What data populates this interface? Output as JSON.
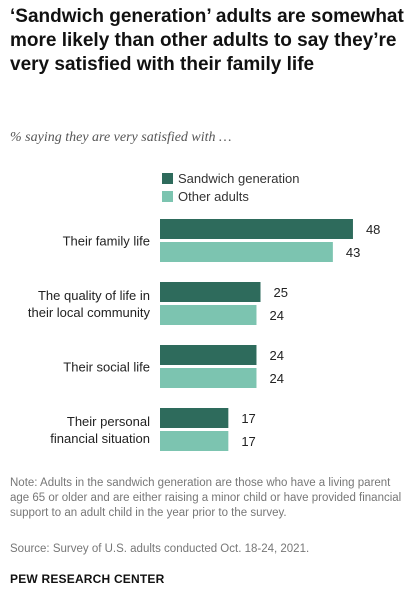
{
  "title": "‘Sandwich generation’ adults are somewhat more likely than other adults to say they’re very satisfied with their family life",
  "subtitle": "% saying they are very satisfied with …",
  "chart_data": {
    "type": "bar",
    "orientation": "horizontal",
    "categories": [
      "Their family life",
      "The quality of life in their local community",
      "Their social life",
      "Their personal financial situation"
    ],
    "category_lines": [
      [
        "Their family life"
      ],
      [
        "The quality of life in",
        "their local community"
      ],
      [
        "Their social life"
      ],
      [
        "Their personal",
        "financial situation"
      ]
    ],
    "series": [
      {
        "name": "Sandwich generation",
        "color": "#2e6b5c",
        "values": [
          48,
          25,
          24,
          17
        ]
      },
      {
        "name": "Other adults",
        "color": "#7cc4b0",
        "values": [
          43,
          24,
          24,
          17
        ]
      }
    ],
    "xlim": [
      0,
      50
    ],
    "legend": "top",
    "grid": false,
    "data_labels": true
  },
  "note": "Note: Adults in the sandwich generation are those who have a living parent age 65 or older and are either raising a minor child or have provided financial support to an adult child in the year prior to the survey.",
  "source": "Source: Survey of U.S. adults conducted Oct. 18-24, 2021.",
  "logo": "PEW RESEARCH CENTER"
}
